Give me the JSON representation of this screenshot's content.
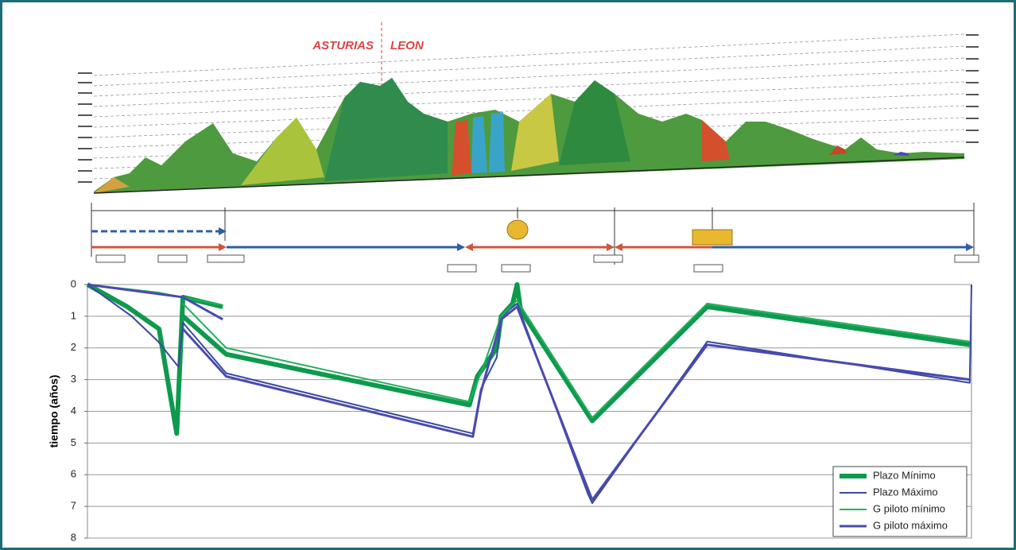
{
  "profile": {
    "left_region": "ASTURIAS",
    "right_region": "LEON"
  },
  "chart_data": {
    "type": "line",
    "y_label": "tiempo (años)",
    "xlim": [
      0,
      100
    ],
    "ylim": [
      0,
      8
    ],
    "y_inverted": true,
    "yticks": [
      0,
      1,
      2,
      3,
      4,
      5,
      6,
      7,
      8
    ],
    "grid": true,
    "legend": "lower right",
    "series": [
      {
        "name": "Plazo Mínimo",
        "color": "#0e9a4e",
        "width": 6,
        "x": [
          0,
          4.5,
          8.1,
          10.1,
          10.8,
          15.3,
          15.3,
          10.8,
          15.7,
          43.2,
          44.1,
          46.3,
          46.8,
          48.1,
          48.6,
          49.0,
          57.1,
          70.1,
          99.8
        ],
        "values": [
          0,
          0.7,
          1.4,
          4.7,
          0.4,
          0.7,
          null,
          1.0,
          2.2,
          3.8,
          2.9,
          2.0,
          1.0,
          0.6,
          0,
          0.8,
          4.3,
          0.7,
          1.9
        ]
      },
      {
        "name": "Plazo Máximo",
        "color": "#3a4a9c",
        "width": 2,
        "x": [
          0,
          5,
          8,
          10.3,
          10.8,
          15.7,
          43.6,
          44.5,
          46.3,
          46.8,
          48.6,
          56.6,
          57.1,
          70.1,
          99.8,
          100
        ],
        "values": [
          0,
          1.0,
          1.8,
          2.6,
          1.2,
          2.8,
          4.7,
          3.3,
          2.3,
          1.0,
          0.6,
          6.6,
          6.9,
          1.8,
          3.1,
          0
        ]
      },
      {
        "name": "G piloto mínimo",
        "color": "#22b05a",
        "width": 2,
        "x": [
          0,
          8,
          15.3,
          15.3,
          10.8,
          15.7,
          43.2,
          44.5,
          46.8,
          48.6,
          57.1,
          70.1,
          99.8
        ],
        "values": [
          0,
          0.25,
          0.65,
          null,
          0.6,
          2.0,
          3.7,
          2.8,
          1.0,
          0.5,
          4.2,
          0.6,
          1.8
        ]
      },
      {
        "name": "G piloto máximo",
        "color": "#4a4ab0",
        "width": 3,
        "x": [
          0,
          10.8,
          15.3,
          15.3,
          10.8,
          15.7,
          43.6,
          44.5,
          46.8,
          48.6,
          57.1,
          70.1,
          99.8
        ],
        "values": [
          0,
          0.4,
          1.1,
          null,
          1.4,
          2.9,
          4.8,
          3.4,
          1.1,
          0.7,
          6.8,
          1.9,
          3.0
        ]
      }
    ]
  }
}
